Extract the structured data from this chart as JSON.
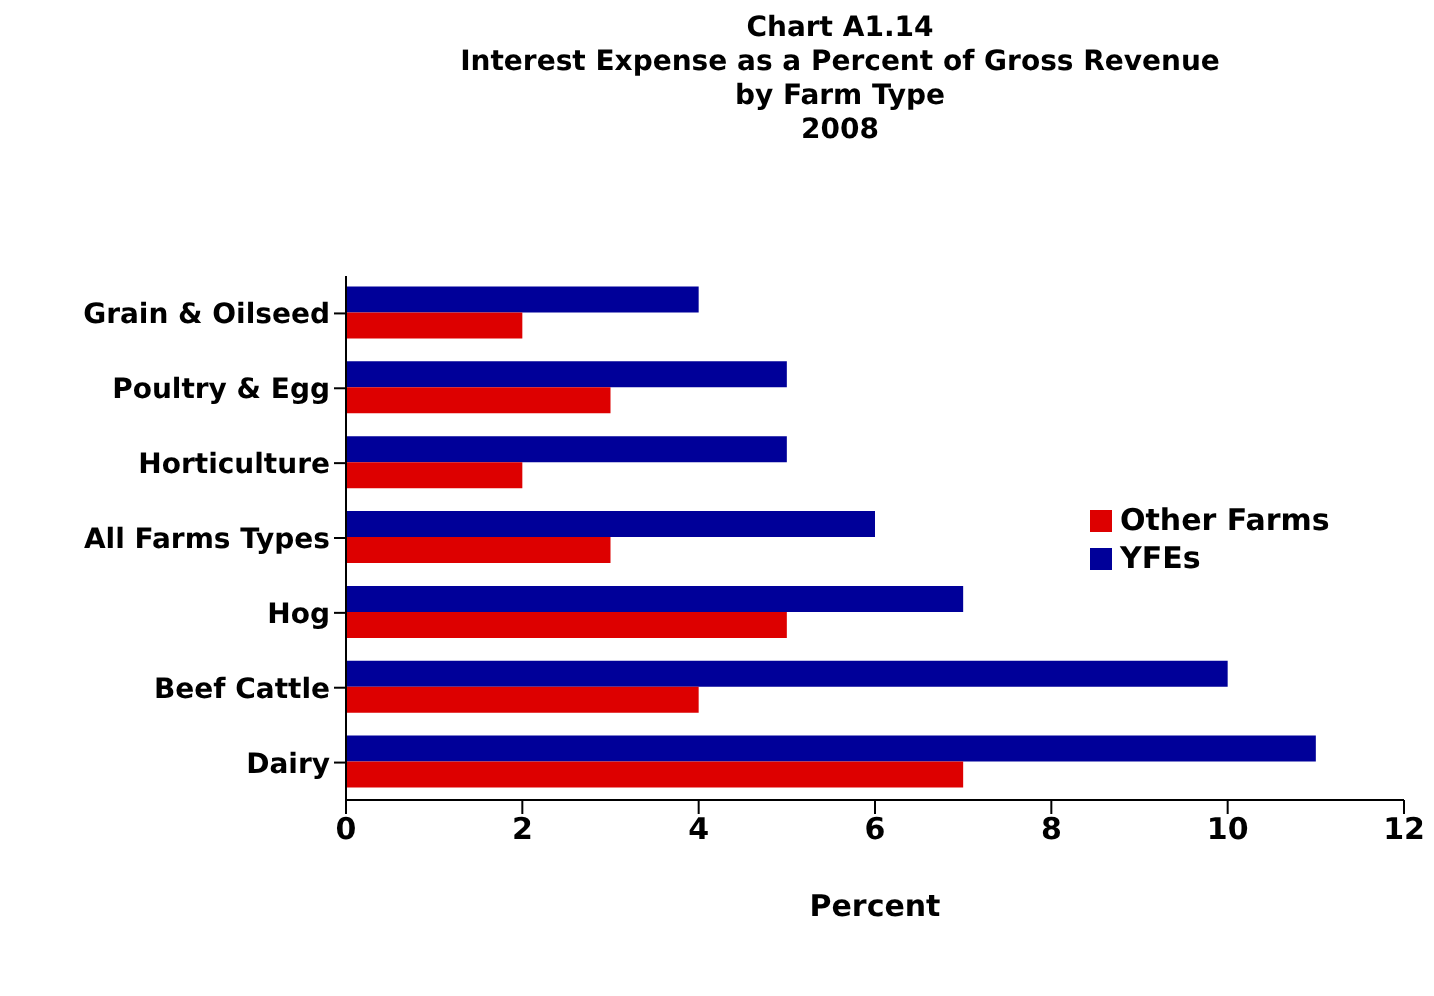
{
  "chart_data": {
    "type": "bar",
    "orientation": "horizontal",
    "title": "Chart A1.14\nInterest Expense as a Percent of Gross Revenue\nby Farm Type\n2008",
    "xlabel": "Percent",
    "categories": [
      "Grain & Oilseed",
      "Poultry & Egg",
      "Horticulture",
      "All Farms Types",
      "Hog",
      "Beef Cattle",
      "Dairy"
    ],
    "series": [
      {
        "name": "YFEs",
        "color": "#000099",
        "values": [
          4,
          5,
          5,
          6,
          7,
          10,
          11
        ]
      },
      {
        "name": "Other Farms",
        "color": "#dd0000",
        "values": [
          2,
          3,
          2,
          3,
          5,
          4,
          7
        ]
      }
    ],
    "xlim": [
      0,
      12
    ],
    "xticks": [
      0,
      2,
      4,
      6,
      8,
      10,
      12
    ],
    "grid": false,
    "legend": "right"
  }
}
